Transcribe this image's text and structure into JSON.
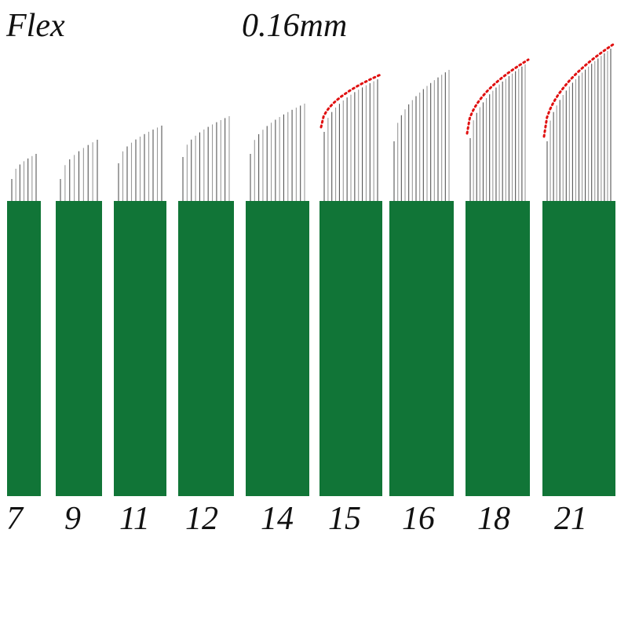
{
  "header": {
    "type_label": "Flex",
    "size_label": "0.16mm"
  },
  "colors": {
    "handle": "#117537",
    "needle": "#9a9a9a",
    "needle_dark": "#555555",
    "curve_marker": "#e01010",
    "text": "#111111"
  },
  "blades": [
    {
      "pins": 7,
      "label": "7",
      "curve_marked": false
    },
    {
      "pins": 9,
      "label": "9",
      "curve_marked": false
    },
    {
      "pins": 11,
      "label": "11",
      "curve_marked": false
    },
    {
      "pins": 12,
      "label": "12",
      "curve_marked": false
    },
    {
      "pins": 14,
      "label": "14",
      "curve_marked": false
    },
    {
      "pins": 15,
      "label": "15",
      "curve_marked": true
    },
    {
      "pins": 16,
      "label": "16",
      "curve_marked": false
    },
    {
      "pins": 18,
      "label": "18",
      "curve_marked": true
    },
    {
      "pins": 21,
      "label": "21",
      "curve_marked": true
    }
  ]
}
